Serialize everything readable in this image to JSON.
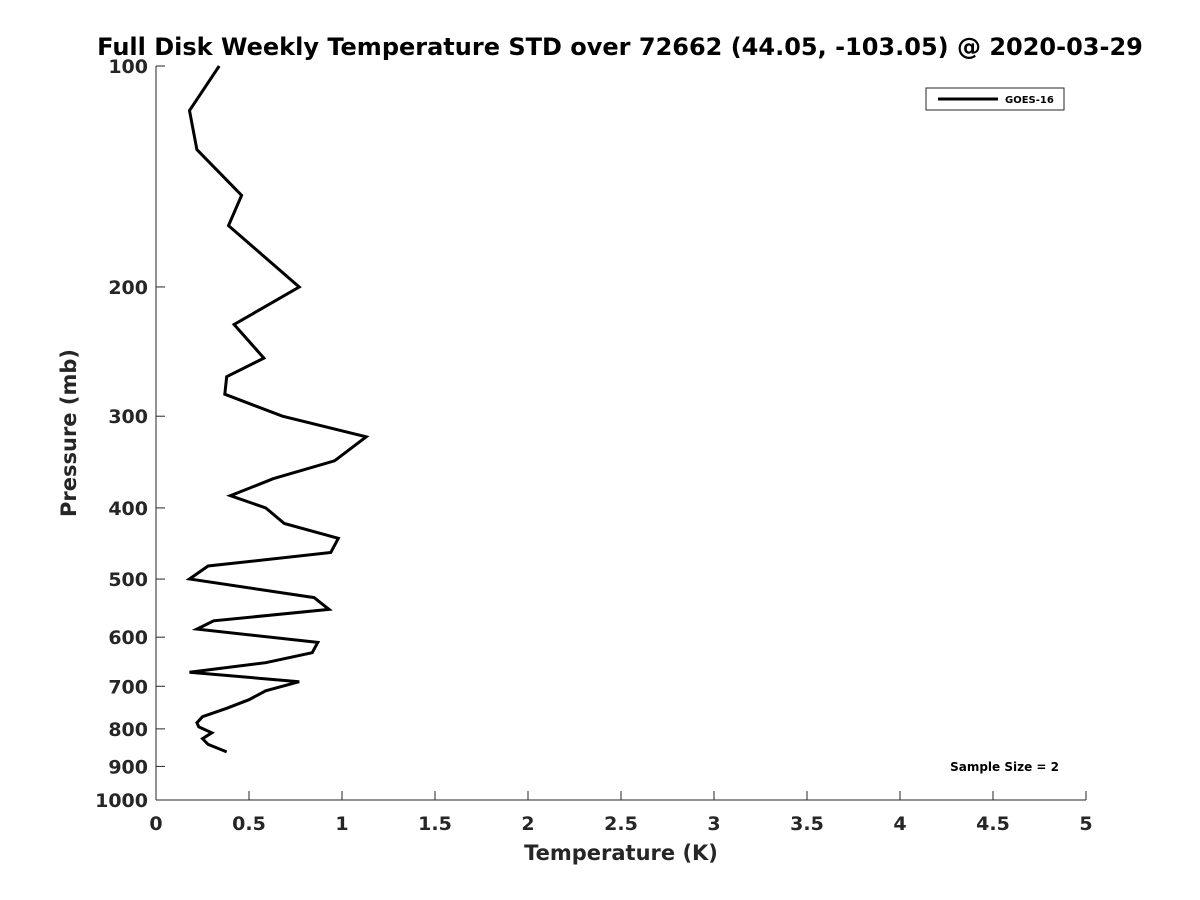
{
  "chart_data": {
    "type": "line",
    "title": "Full Disk Weekly Temperature STD over 72662 (44.05, -103.05) @ 2020-03-29",
    "xlabel": "Temperature (K)",
    "ylabel": "Pressure (mb)",
    "xlim": [
      0,
      5
    ],
    "ylim": [
      100,
      1000
    ],
    "yscale": "log",
    "y_reversed": true,
    "xticks": [
      0,
      0.5,
      1,
      1.5,
      2,
      2.5,
      3,
      3.5,
      4,
      4.5,
      5
    ],
    "xtick_labels": [
      "0",
      "0.5",
      "1",
      "1.5",
      "2",
      "2.5",
      "3",
      "3.5",
      "4",
      "4.5",
      "5"
    ],
    "yticks": [
      100,
      200,
      300,
      400,
      500,
      600,
      700,
      800,
      900,
      1000
    ],
    "ytick_labels": [
      "100",
      "200",
      "300",
      "400",
      "500",
      "600",
      "700",
      "800",
      "900",
      "1000"
    ],
    "grid": false,
    "legend_position": "top-right",
    "series": [
      {
        "name": "GOES-16",
        "color": "#000000",
        "x": [
          0.34,
          0.18,
          0.22,
          0.46,
          0.39,
          0.77,
          0.42,
          0.58,
          0.38,
          0.37,
          0.68,
          1.13,
          0.96,
          0.63,
          0.4,
          0.59,
          0.69,
          0.98,
          0.94,
          0.28,
          0.18,
          0.85,
          0.93,
          0.31,
          0.22,
          0.87,
          0.84,
          0.59,
          0.18,
          0.77,
          0.59,
          0.5,
          0.38,
          0.25,
          0.22,
          0.23,
          0.3,
          0.25,
          0.28,
          0.38
        ],
        "y": [
          100,
          115,
          130,
          150,
          165,
          200,
          225,
          250,
          265,
          280,
          300,
          320,
          345,
          365,
          385,
          400,
          420,
          440,
          460,
          480,
          500,
          530,
          550,
          570,
          585,
          610,
          630,
          650,
          670,
          690,
          710,
          730,
          750,
          770,
          785,
          795,
          810,
          825,
          840,
          860
        ]
      }
    ],
    "annotations": [
      {
        "text": "Sample Size = 2",
        "position": "bottom-right"
      }
    ]
  }
}
